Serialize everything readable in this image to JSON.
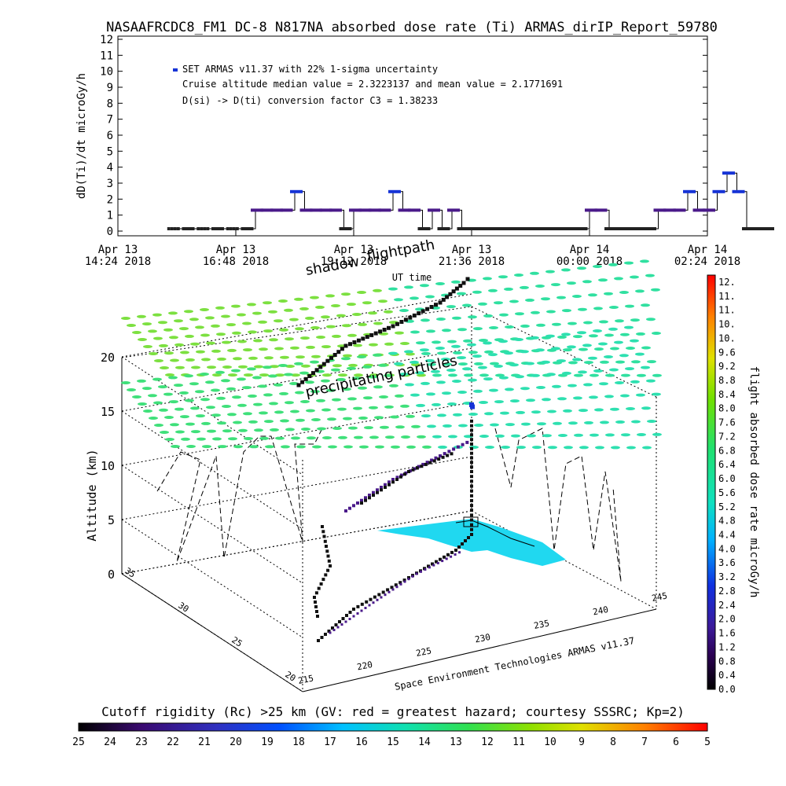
{
  "title": "NASAAFRCDC8_FM1 DC-8   N817NA absorbed dose rate (Ti) ARMAS_dirIP_Report_59780",
  "chart_data": [
    {
      "type": "line",
      "ylabel": "dD(Ti)/dt microGy/h",
      "xlabel": "UT time",
      "ylim": [
        0,
        12
      ],
      "yticks": [
        "0",
        "1",
        "2",
        "3",
        "4",
        "5",
        "6",
        "7",
        "8",
        "9",
        "10",
        "11",
        "12"
      ],
      "xticks": [
        {
          "l1": "Apr 13",
          "l2": "14:24 2018"
        },
        {
          "l1": "Apr 13",
          "l2": "16:48 2018"
        },
        {
          "l1": "Apr 13",
          "l2": "19:12 2018"
        },
        {
          "l1": "Apr 13",
          "l2": "21:36 2018"
        },
        {
          "l1": "Apr 14",
          "l2": "00:00 2018"
        },
        {
          "l1": "Apr 14",
          "l2": "02:24 2018"
        }
      ],
      "legend": [
        "SET ARMAS v11.37 with 22% 1-sigma uncertainty",
        "Cruise altitude median value = 2.3223137 and mean value = 2.1771691",
        "D(si) -> D(ti) conversion factor C3 = 1.38233"
      ],
      "series": [
        {
          "x_hours_from_tick0": [
            1.1,
            1.4,
            1.7,
            2.0,
            2.3,
            2.6,
            2.8,
            3.0,
            3.2,
            3.4,
            3.6,
            3.8,
            4.0,
            4.2,
            4.4,
            4.6,
            4.8,
            5.0,
            5.2,
            5.4,
            5.6,
            5.8,
            6.0,
            6.2,
            6.4,
            6.6,
            6.8,
            7.0,
            7.2,
            7.4,
            7.6,
            7.8,
            8.0,
            8.2,
            8.4,
            8.6,
            8.8,
            9.0,
            9.2,
            9.4,
            9.6,
            9.8,
            10.0,
            10.2,
            10.4,
            10.6,
            10.8,
            11.0,
            11.2,
            11.4,
            11.6,
            11.8,
            12.0,
            12.2,
            12.4,
            12.6,
            12.8,
            13.0,
            13.2
          ],
          "values": [
            0,
            0,
            0,
            0,
            0,
            0,
            1.16,
            1.16,
            1.16,
            1.16,
            2.32,
            1.16,
            1.16,
            1.16,
            1.16,
            0,
            1.16,
            1.16,
            1.16,
            1.16,
            2.32,
            1.16,
            1.16,
            0,
            1.16,
            0,
            1.16,
            0,
            0,
            0,
            0,
            0,
            0,
            0,
            0,
            0,
            0,
            0,
            0,
            0,
            1.16,
            1.16,
            0,
            0,
            0,
            0,
            0,
            1.16,
            1.16,
            1.16,
            2.32,
            1.16,
            1.16,
            2.32,
            3.48,
            2.32,
            0,
            0,
            0
          ]
        }
      ]
    },
    {
      "type": "scatter",
      "ylabel": "Altitude (km)",
      "zticks": [
        "0",
        "5",
        "10",
        "15",
        "20"
      ],
      "lon_ticks": [
        "215",
        "220",
        "225",
        "230",
        "235",
        "240",
        "245"
      ],
      "lat_ticks": [
        "20",
        "25",
        "30",
        "35"
      ],
      "annotations": [
        "flightpath",
        "shadow",
        "precipitating particles"
      ],
      "credit": "Space Environment Technologies ARMAS v11.37",
      "colorbar": {
        "label": "flight absorbed dose rate microGy/h",
        "ticks": [
          "0.0",
          "0.4",
          "0.8",
          "1.2",
          "1.6",
          "2.0",
          "2.4",
          "2.8",
          "3.2",
          "3.6",
          "4.0",
          "4.4",
          "4.8",
          "5.2",
          "5.6",
          "6.0",
          "6.4",
          "6.8",
          "7.2",
          "7.6",
          "8.0",
          "8.4",
          "8.8",
          "9.2",
          "9.6",
          "10.",
          "10.",
          "11.",
          "11.",
          "12."
        ]
      }
    },
    {
      "type": "heatmap",
      "title": "Cutoff rigidity (Rc) >25 km (GV: red = greatest hazard; courtesy SSSRC; Kp=2)",
      "ticks": [
        "25",
        "24",
        "23",
        "22",
        "21",
        "20",
        "19",
        "18",
        "17",
        "16",
        "15",
        "14",
        "13",
        "12",
        "11",
        "10",
        "9",
        "8",
        "7",
        "6",
        "5"
      ]
    }
  ],
  "colors": {
    "marker_blue": "#1633d6",
    "marker_purple": "#4a1a8a",
    "grid_green": "#33e07a",
    "cyan_region": "#20d8f0"
  }
}
